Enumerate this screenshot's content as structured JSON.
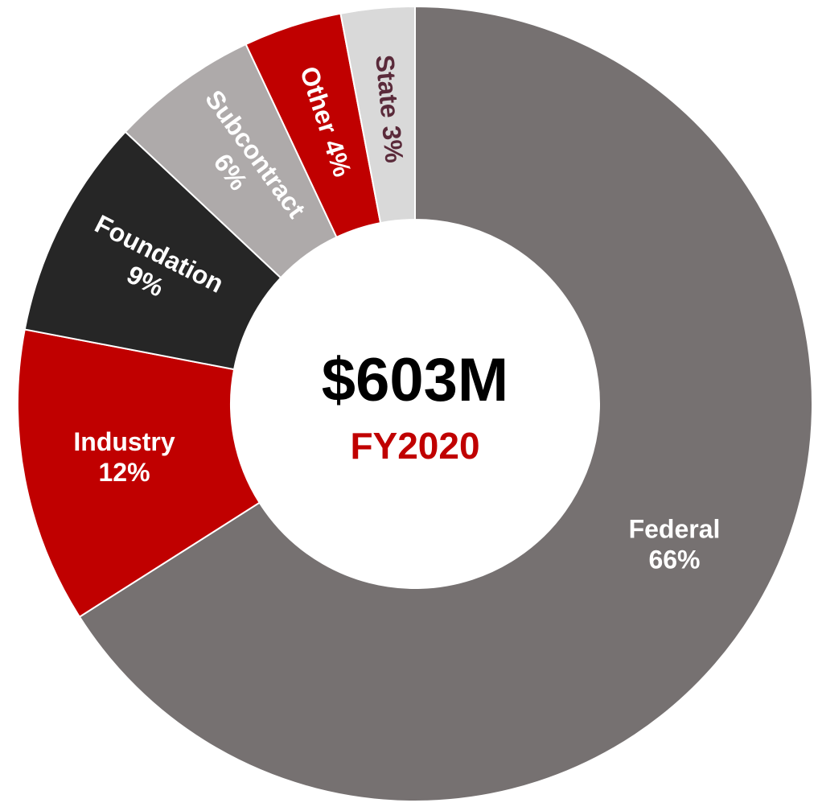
{
  "chart_data": {
    "type": "donut",
    "categories": [
      "Federal",
      "Industry",
      "Foundation",
      "Subcontract",
      "Other",
      "State"
    ],
    "values": [
      66,
      12,
      9,
      6,
      4,
      3
    ],
    "value_labels": [
      "66%",
      "12%",
      "9%",
      "6%",
      "4%",
      "3%"
    ],
    "colors": [
      "#767171",
      "#c00000",
      "#262626",
      "#aeaaaa",
      "#c00000",
      "#d9d9d9"
    ],
    "label_colors": [
      "#ffffff",
      "#ffffff",
      "#ffffff",
      "#ffffff",
      "#ffffff",
      "#5a2a3a"
    ],
    "center_title": "$603M",
    "center_subtitle": "FY2020"
  }
}
